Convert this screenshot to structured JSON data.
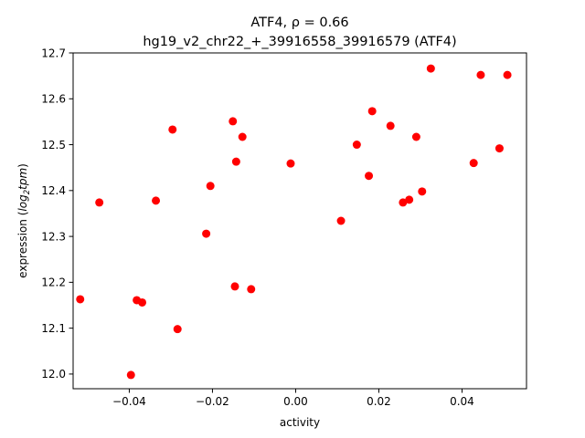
{
  "chart_data": {
    "type": "scatter",
    "title_line1": "ATF4, ρ = 0.66",
    "title_line2": "hg19_v2_chr22_+_39916558_39916579 (ATF4)",
    "xlabel": "activity",
    "ylabel_prefix": "expression (",
    "ylabel_italic": "log",
    "ylabel_sub": "2",
    "ylabel_italic2": "tpm",
    "ylabel_suffix": ")",
    "xlim": [
      -0.0535,
      0.0555
    ],
    "ylim": [
      11.968,
      12.7
    ],
    "xticks": [
      -0.04,
      -0.02,
      0.0,
      0.02,
      0.04
    ],
    "xtick_labels": [
      "−0.04",
      "−0.02",
      "0.00",
      "0.02",
      "0.04"
    ],
    "yticks": [
      12.0,
      12.1,
      12.2,
      12.3,
      12.4,
      12.5,
      12.6,
      12.7
    ],
    "ytick_labels": [
      "12.0",
      "12.1",
      "12.2",
      "12.3",
      "12.4",
      "12.5",
      "12.6",
      "12.7"
    ],
    "marker_color": "#ff0000",
    "grid": false,
    "points": [
      {
        "x": -0.0518,
        "y": 12.163
      },
      {
        "x": -0.0472,
        "y": 12.374
      },
      {
        "x": -0.0396,
        "y": 11.998
      },
      {
        "x": -0.0382,
        "y": 12.161
      },
      {
        "x": -0.0369,
        "y": 12.156
      },
      {
        "x": -0.0336,
        "y": 12.378
      },
      {
        "x": -0.0296,
        "y": 12.533
      },
      {
        "x": -0.0284,
        "y": 12.098
      },
      {
        "x": -0.0215,
        "y": 12.306
      },
      {
        "x": -0.0205,
        "y": 12.41
      },
      {
        "x": -0.0151,
        "y": 12.551
      },
      {
        "x": -0.0146,
        "y": 12.191
      },
      {
        "x": -0.0143,
        "y": 12.463
      },
      {
        "x": -0.0128,
        "y": 12.517
      },
      {
        "x": -0.0107,
        "y": 12.185
      },
      {
        "x": -0.0012,
        "y": 12.459
      },
      {
        "x": 0.0109,
        "y": 12.334
      },
      {
        "x": 0.0147,
        "y": 12.5
      },
      {
        "x": 0.0176,
        "y": 12.432
      },
      {
        "x": 0.0184,
        "y": 12.573
      },
      {
        "x": 0.0228,
        "y": 12.541
      },
      {
        "x": 0.0258,
        "y": 12.374
      },
      {
        "x": 0.0273,
        "y": 12.38
      },
      {
        "x": 0.029,
        "y": 12.517
      },
      {
        "x": 0.0304,
        "y": 12.398
      },
      {
        "x": 0.0325,
        "y": 12.666
      },
      {
        "x": 0.0428,
        "y": 12.46
      },
      {
        "x": 0.0445,
        "y": 12.652
      },
      {
        "x": 0.049,
        "y": 12.492
      },
      {
        "x": 0.0509,
        "y": 12.652
      }
    ]
  }
}
